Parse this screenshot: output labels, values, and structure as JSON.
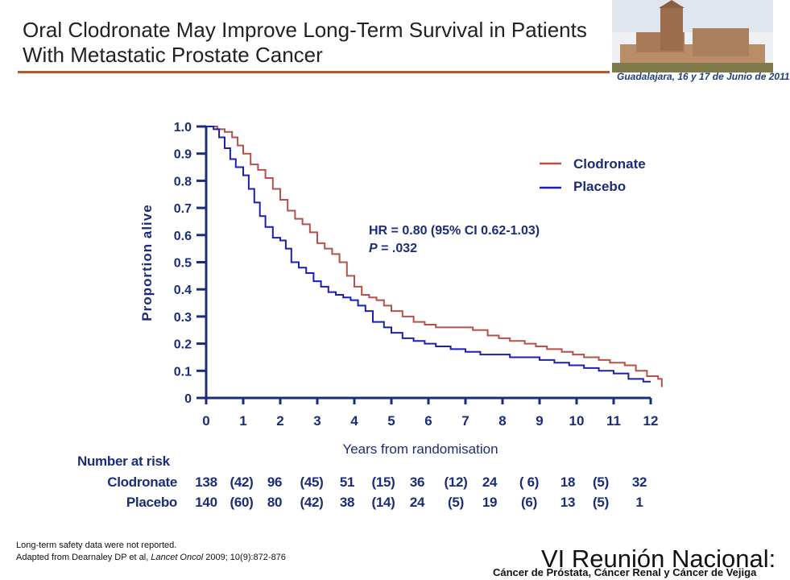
{
  "slide": {
    "title_line1": "Oral Clodronate May Improve Long-Term Survival in Patients",
    "title_line2": "With Metastatic Prostate Cancer",
    "banner_caption": "Guadalajara, 16 y 17 de Junio de 2011",
    "footnote_line1": "Long-term safety data were not reported.",
    "footnote_line2_prefix": "Adapted from Dearnaley DP et al, ",
    "footnote_journal": "Lancet Oncol",
    "footnote_line2_suffix": " 2009; 10(9):872-876",
    "footer_title": "VI Reunión Nacional:",
    "footer_subtitle": "Cáncer de Próstata, Cáncer Renal y Cáncer de Vejiga"
  },
  "annotation": {
    "hr_line": "HR = 0.80 (95% CI 0.62-1.03)",
    "p_label": "P",
    "p_value": " = .032"
  },
  "risk_table": {
    "header": "Number at risk",
    "rows": [
      {
        "label": "Clodronate",
        "cells": [
          "138",
          "(42)",
          "96",
          "(45)",
          "51",
          "(15)",
          "36",
          "(12)",
          "24",
          "( 6)",
          "18",
          "(5)",
          "32"
        ]
      },
      {
        "label": "Placebo",
        "cells": [
          "140",
          "(60)",
          "80",
          "(42)",
          "38",
          "(14)",
          "24",
          "(5)",
          "19",
          "(6)",
          "13",
          "(5)",
          "1"
        ]
      }
    ]
  },
  "chart_data": {
    "type": "line",
    "title": "",
    "xlabel": "Years from randomisation",
    "ylabel": "Proportion alive",
    "xlim": [
      0,
      12
    ],
    "ylim": [
      0,
      1.0
    ],
    "x_ticks": [
      "0",
      "1",
      "2",
      "3",
      "4",
      "5",
      "6",
      "7",
      "8",
      "9",
      "10",
      "11",
      "12"
    ],
    "y_ticks": [
      "0",
      "0.1",
      "0.2",
      "0.3",
      "0.4",
      "0.5",
      "0.6",
      "0.7",
      "0.8",
      "0.9",
      "1.0"
    ],
    "legend_position": "top-right",
    "series": [
      {
        "name": "Clodronate",
        "color": "#b5504a",
        "x": [
          0,
          0.2,
          0.3,
          0.5,
          0.7,
          0.85,
          1.0,
          1.2,
          1.4,
          1.6,
          1.8,
          2.0,
          2.2,
          2.4,
          2.6,
          2.8,
          3.0,
          3.2,
          3.4,
          3.6,
          3.8,
          4.0,
          4.2,
          4.4,
          4.6,
          4.8,
          5.0,
          5.3,
          5.6,
          5.9,
          6.2,
          6.6,
          6.9,
          7.2,
          7.6,
          7.9,
          8.2,
          8.6,
          8.9,
          9.2,
          9.6,
          9.9,
          10.2,
          10.6,
          10.9,
          11.3,
          11.6,
          11.9,
          12.2,
          12.3
        ],
        "y": [
          1.0,
          1.0,
          0.99,
          0.98,
          0.96,
          0.93,
          0.9,
          0.86,
          0.84,
          0.81,
          0.77,
          0.73,
          0.69,
          0.66,
          0.64,
          0.61,
          0.57,
          0.55,
          0.53,
          0.5,
          0.45,
          0.41,
          0.38,
          0.37,
          0.36,
          0.34,
          0.32,
          0.3,
          0.28,
          0.27,
          0.26,
          0.26,
          0.26,
          0.25,
          0.23,
          0.22,
          0.21,
          0.2,
          0.19,
          0.18,
          0.17,
          0.16,
          0.15,
          0.14,
          0.13,
          0.12,
          0.1,
          0.08,
          0.07,
          0.04
        ]
      },
      {
        "name": "Placebo",
        "color": "#1b1fb5",
        "x": [
          0,
          0.1,
          0.2,
          0.35,
          0.5,
          0.65,
          0.8,
          1.0,
          1.15,
          1.3,
          1.45,
          1.6,
          1.8,
          2.0,
          2.15,
          2.3,
          2.5,
          2.7,
          2.9,
          3.1,
          3.3,
          3.5,
          3.7,
          3.9,
          4.1,
          4.3,
          4.5,
          4.8,
          5.0,
          5.3,
          5.6,
          5.9,
          6.2,
          6.6,
          7.0,
          7.4,
          7.8,
          8.2,
          8.6,
          9.0,
          9.4,
          9.8,
          10.2,
          10.6,
          11.0,
          11.4,
          11.8,
          12.0
        ],
        "y": [
          1.0,
          1.0,
          0.99,
          0.96,
          0.92,
          0.88,
          0.85,
          0.82,
          0.77,
          0.72,
          0.67,
          0.63,
          0.59,
          0.58,
          0.55,
          0.5,
          0.48,
          0.46,
          0.43,
          0.41,
          0.39,
          0.38,
          0.37,
          0.36,
          0.34,
          0.32,
          0.28,
          0.26,
          0.24,
          0.22,
          0.21,
          0.2,
          0.19,
          0.18,
          0.17,
          0.16,
          0.16,
          0.15,
          0.15,
          0.14,
          0.13,
          0.12,
          0.11,
          0.1,
          0.09,
          0.07,
          0.06,
          0.06
        ]
      }
    ]
  }
}
